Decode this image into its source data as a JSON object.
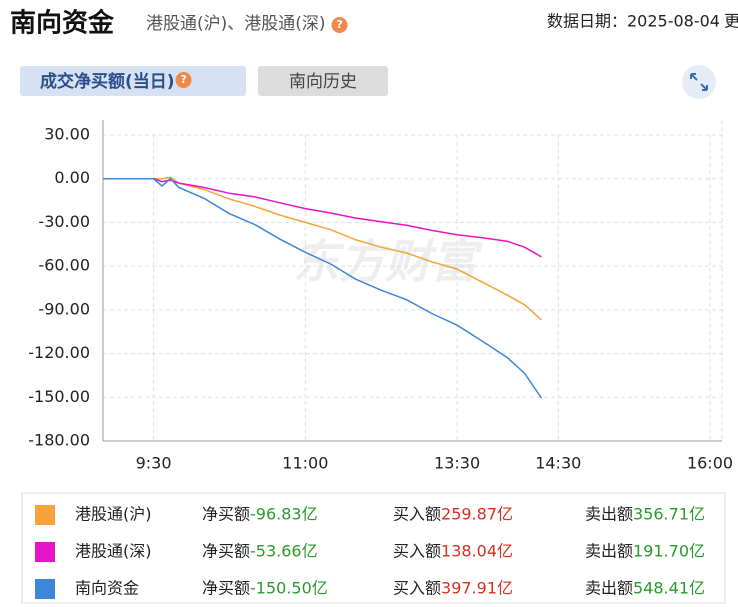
{
  "header": {
    "title": "南向资金",
    "subtitle": "港股通(沪)、港股通(深)",
    "help": "?",
    "date": "数据日期：2025-08-04",
    "more": "更"
  },
  "tabs": [
    {
      "label": "成交净买额(当日)",
      "help": "?"
    },
    {
      "label": "南向历史"
    }
  ],
  "chart_data": {
    "type": "line",
    "watermark": "东方财富",
    "x": [
      "9:00",
      "9:15",
      "9:30",
      "9:35",
      "9:40",
      "9:45",
      "10:00",
      "10:15",
      "10:30",
      "10:45",
      "11:00",
      "11:15",
      "11:30",
      "11:45",
      "12:00",
      "13:15",
      "13:30",
      "13:45",
      "14:00",
      "14:10",
      "14:20"
    ],
    "series": [
      {
        "name": "港股通(沪)",
        "color": "#f5a33a",
        "values": [
          0,
          0,
          0,
          0,
          1,
          -3,
          -7.5,
          -14,
          -19,
          -25,
          -30,
          -35,
          -42,
          -47,
          -51,
          -57,
          -62,
          -71,
          -80,
          -86.5,
          -96.83
        ]
      },
      {
        "name": "港股通(深)",
        "color": "#e614c8",
        "values": [
          0,
          0,
          0,
          -2,
          -1,
          -3,
          -6,
          -10,
          -12.5,
          -16.5,
          -20.5,
          -23.5,
          -27,
          -29.5,
          -32,
          -35.5,
          -38.5,
          -40.5,
          -43,
          -47,
          -53.66
        ]
      },
      {
        "name": "南向资金",
        "color": "#3d86d8",
        "values": [
          0,
          0,
          0,
          -5,
          0,
          -6,
          -13.5,
          -24,
          -31.5,
          -41.5,
          -50.5,
          -58.5,
          -69,
          -76.5,
          -83,
          -92.5,
          -100.5,
          -111.5,
          -123,
          -133.5,
          -150.5
        ]
      }
    ],
    "xlim": [
      "9:00",
      "16:00"
    ],
    "xticks": [
      "9:30",
      "11:00",
      "13:30",
      "14:30",
      "16:00"
    ],
    "ylim": [
      -180,
      30
    ],
    "yticks": [
      {
        "value": 30,
        "label": "30.00"
      },
      {
        "value": 0,
        "label": "0.00"
      },
      {
        "value": -30,
        "label": "-30.00"
      },
      {
        "value": -60,
        "label": "-60.00"
      },
      {
        "value": -90,
        "label": "-90.00"
      },
      {
        "value": -120,
        "label": "-120.00"
      },
      {
        "value": -150,
        "label": "-150.00"
      },
      {
        "value": -180,
        "label": "-180.00"
      }
    ],
    "grid": true
  },
  "summary": {
    "rows": [
      {
        "net_label": "净买额",
        "net": "-96.83亿",
        "buy_label": "买入额",
        "buy": "259.87亿",
        "sell_label": "卖出额",
        "sell": "356.71亿"
      },
      {
        "net_label": "净买额",
        "net": "-53.66亿",
        "buy_label": "买入额",
        "buy": "138.04亿",
        "sell_label": "卖出额",
        "sell": "191.70亿"
      },
      {
        "net_label": "净买额",
        "net": "-150.50亿",
        "buy_label": "买入额",
        "buy": "397.91亿",
        "sell_label": "卖出额",
        "sell": "548.41亿"
      }
    ]
  }
}
